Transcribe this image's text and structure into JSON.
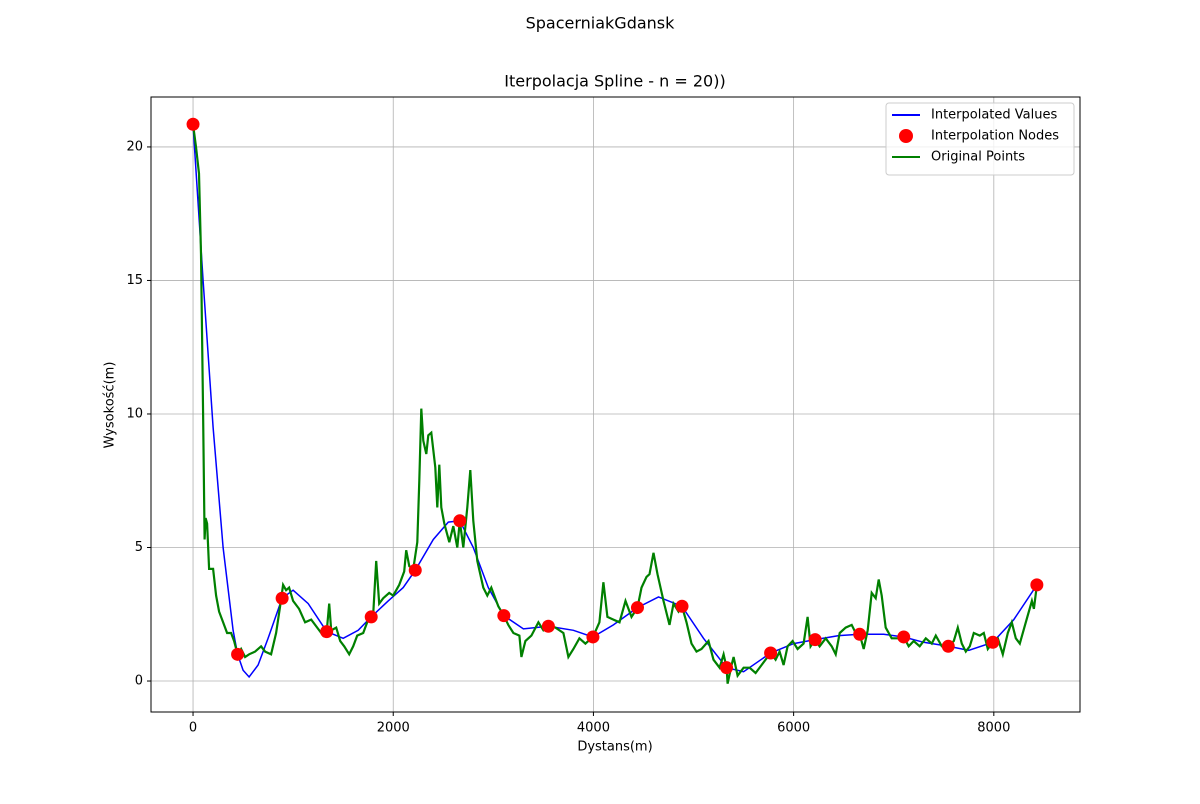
{
  "chart_data": {
    "type": "line",
    "suptitle": "SpacerniakGdansk",
    "title": "Iterpolacja Spline - n = 20))",
    "xlabel": "Dystans(m)",
    "ylabel": "Wysokość(m)",
    "xlim": [
      -420,
      8861
    ],
    "ylim": [
      -1.16,
      21.87
    ],
    "xticks": [
      0,
      2000,
      4000,
      6000,
      8000
    ],
    "yticks": [
      0,
      5,
      10,
      15,
      20
    ],
    "grid": true,
    "legend": "upper right",
    "series": [
      {
        "name": "Interpolated Values",
        "color": "#0000ff",
        "kind": "line",
        "x": [
          0,
          100,
          200,
          300,
          400,
          445,
          500,
          560,
          650,
          750,
          890,
          1000,
          1150,
          1335,
          1500,
          1650,
          1780,
          1950,
          2100,
          2220,
          2400,
          2550,
          2665,
          2800,
          2950,
          3105,
          3300,
          3550,
          3800,
          3995,
          4200,
          4440,
          4650,
          4885,
          5100,
          5330,
          5500,
          5770,
          6000,
          6215,
          6450,
          6660,
          6900,
          7100,
          7300,
          7545,
          7750,
          7990,
          8200,
          8430
        ],
        "values": [
          20.85,
          15,
          9.5,
          5,
          1.9,
          1.0,
          0.4,
          0.15,
          0.6,
          1.6,
          3.1,
          3.4,
          2.9,
          1.85,
          1.6,
          1.9,
          2.4,
          3.0,
          3.5,
          4.15,
          5.3,
          5.95,
          6.0,
          5.0,
          3.5,
          2.45,
          1.95,
          2.05,
          1.9,
          1.65,
          2.1,
          2.75,
          3.15,
          2.8,
          1.6,
          0.5,
          0.35,
          1.05,
          1.4,
          1.55,
          1.7,
          1.75,
          1.75,
          1.65,
          1.45,
          1.3,
          1.15,
          1.45,
          2.3,
          3.6
        ]
      },
      {
        "name": "Interpolation Nodes",
        "color": "#ff0000",
        "kind": "scatter",
        "x": [
          0,
          445,
          890,
          1335,
          1780,
          2220,
          2665,
          3105,
          3550,
          3995,
          4440,
          4885,
          5330,
          5770,
          6215,
          6660,
          7100,
          7545,
          7990,
          8430
        ],
        "values": [
          20.85,
          1.0,
          3.1,
          1.85,
          2.4,
          4.15,
          6.0,
          2.45,
          2.05,
          1.65,
          2.75,
          2.8,
          0.5,
          1.05,
          1.55,
          1.75,
          1.65,
          1.3,
          1.45,
          3.6
        ]
      },
      {
        "name": "Original Points",
        "color": "#008000",
        "kind": "line",
        "x": [
          0,
          30,
          60,
          80,
          100,
          115,
          125,
          140,
          160,
          200,
          230,
          260,
          300,
          340,
          380,
          410,
          445,
          480,
          520,
          560,
          620,
          680,
          720,
          780,
          830,
          870,
          900,
          930,
          960,
          1000,
          1060,
          1120,
          1180,
          1240,
          1300,
          1335,
          1360,
          1380,
          1430,
          1470,
          1510,
          1560,
          1600,
          1640,
          1700,
          1760,
          1800,
          1830,
          1860,
          1900,
          1960,
          2000,
          2060,
          2110,
          2130,
          2160,
          2200,
          2240,
          2260,
          2280,
          2300,
          2330,
          2350,
          2380,
          2420,
          2440,
          2460,
          2480,
          2510,
          2560,
          2600,
          2640,
          2665,
          2700,
          2740,
          2770,
          2800,
          2840,
          2900,
          2940,
          2980,
          3050,
          3105,
          3150,
          3200,
          3260,
          3280,
          3320,
          3380,
          3450,
          3500,
          3550,
          3620,
          3700,
          3750,
          3800,
          3860,
          3920,
          3995,
          4060,
          4100,
          4140,
          4200,
          4260,
          4320,
          4380,
          4440,
          4480,
          4530,
          4560,
          4600,
          4640,
          4700,
          4760,
          4800,
          4850,
          4885,
          4930,
          4980,
          5030,
          5080,
          5150,
          5200,
          5260,
          5300,
          5330,
          5340,
          5380,
          5400,
          5440,
          5500,
          5560,
          5620,
          5680,
          5770,
          5820,
          5860,
          5900,
          5940,
          5990,
          6040,
          6100,
          6140,
          6170,
          6215,
          6260,
          6320,
          6380,
          6420,
          6460,
          6520,
          6580,
          6620,
          6660,
          6700,
          6740,
          6780,
          6820,
          6850,
          6880,
          6920,
          6980,
          7040,
          7100,
          7150,
          7200,
          7260,
          7320,
          7380,
          7420,
          7480,
          7545,
          7600,
          7640,
          7680,
          7720,
          7760,
          7800,
          7860,
          7900,
          7940,
          7990,
          8040,
          8090,
          8140,
          8180,
          8220,
          8260,
          8320,
          8380,
          8400,
          8430
        ],
        "values": [
          20.85,
          20,
          19,
          16,
          10,
          5.3,
          6.1,
          5.9,
          4.2,
          4.2,
          3.2,
          2.6,
          2.2,
          1.8,
          1.8,
          1.5,
          1.0,
          1.2,
          0.9,
          1.0,
          1.1,
          1.3,
          1.1,
          1.0,
          1.8,
          2.8,
          3.6,
          3.4,
          3.5,
          3.0,
          2.7,
          2.2,
          2.3,
          2.0,
          1.7,
          1.85,
          2.9,
          1.9,
          2.0,
          1.5,
          1.3,
          1.0,
          1.3,
          1.7,
          1.8,
          2.4,
          2.5,
          4.5,
          2.9,
          3.1,
          3.3,
          3.2,
          3.6,
          4.1,
          4.9,
          4.3,
          4.2,
          5.2,
          7.5,
          10.2,
          9.0,
          8.5,
          9.2,
          9.3,
          8.0,
          6.5,
          8.1,
          6.5,
          5.9,
          5.2,
          5.8,
          5.0,
          6.0,
          5.0,
          6.5,
          7.9,
          6.0,
          4.5,
          3.5,
          3.2,
          3.5,
          2.8,
          2.45,
          2.1,
          1.8,
          1.7,
          0.9,
          1.5,
          1.7,
          2.2,
          1.9,
          2.05,
          2.0,
          1.8,
          0.9,
          1.2,
          1.6,
          1.4,
          1.65,
          2.2,
          3.7,
          2.4,
          2.3,
          2.2,
          3.0,
          2.4,
          2.75,
          3.5,
          3.9,
          4.0,
          4.8,
          4.0,
          3.0,
          2.1,
          2.9,
          2.6,
          2.8,
          2.2,
          1.4,
          1.1,
          1.2,
          1.5,
          0.8,
          0.5,
          1.0,
          0.5,
          -0.1,
          0.6,
          0.9,
          0.2,
          0.5,
          0.5,
          0.3,
          0.6,
          1.05,
          0.8,
          1.1,
          0.6,
          1.3,
          1.5,
          1.2,
          1.4,
          2.4,
          1.3,
          1.55,
          1.3,
          1.6,
          1.3,
          1.0,
          1.8,
          2.0,
          2.1,
          1.8,
          1.75,
          1.2,
          1.9,
          3.3,
          3.1,
          3.8,
          3.2,
          2.0,
          1.6,
          1.6,
          1.65,
          1.3,
          1.5,
          1.3,
          1.6,
          1.4,
          1.7,
          1.3,
          1.3,
          1.5,
          2.0,
          1.4,
          1.1,
          1.3,
          1.8,
          1.7,
          1.8,
          1.2,
          1.45,
          1.6,
          1.0,
          1.8,
          2.2,
          1.6,
          1.4,
          2.2,
          3.0,
          2.7,
          3.6
        ]
      }
    ]
  }
}
